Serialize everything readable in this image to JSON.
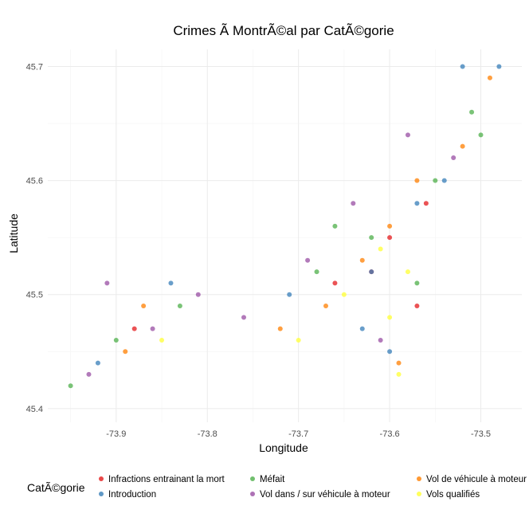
{
  "chart_data": {
    "type": "scatter",
    "title": "Crimes Ã  MontrÃ©al par CatÃ©gorie",
    "xlabel": "Longitude",
    "ylabel": "Latitude",
    "xlim": [
      -73.975,
      -73.455
    ],
    "ylim": [
      45.388,
      45.715
    ],
    "x_ticks": [
      -73.9,
      -73.8,
      -73.7,
      -73.6,
      -73.5
    ],
    "x_tick_labels": [
      "-73.9",
      "-73.8",
      "-73.7",
      "-73.6",
      "-73.5"
    ],
    "y_ticks": [
      45.4,
      45.5,
      45.6,
      45.7
    ],
    "y_tick_labels": [
      "45.4",
      "45.5",
      "45.6",
      "45.7"
    ],
    "grid": true,
    "legend_position": "bottom",
    "legend_title": "CatÃ©gorie",
    "series": [
      {
        "name": "Infractions entrainant la mort",
        "color": "#e41a1c",
        "points": [
          [
            -73.62,
            45.52
          ],
          [
            -73.57,
            45.49
          ],
          [
            -73.6,
            45.55
          ],
          [
            -73.56,
            45.58
          ],
          [
            -73.66,
            45.51
          ],
          [
            -73.88,
            45.47
          ]
        ]
      },
      {
        "name": "Introduction",
        "color": "#377eb8",
        "points": [
          [
            -73.52,
            45.7
          ],
          [
            -73.48,
            45.7
          ],
          [
            -73.84,
            45.51
          ],
          [
            -73.71,
            45.5
          ],
          [
            -73.62,
            45.52
          ],
          [
            -73.57,
            45.58
          ],
          [
            -73.54,
            45.6
          ],
          [
            -73.92,
            45.44
          ],
          [
            -73.63,
            45.47
          ],
          [
            -73.6,
            45.45
          ]
        ]
      },
      {
        "name": "Méfait",
        "color": "#4daf4a",
        "points": [
          [
            -73.5,
            45.64
          ],
          [
            -73.51,
            45.66
          ],
          [
            -73.55,
            45.6
          ],
          [
            -73.62,
            45.55
          ],
          [
            -73.66,
            45.56
          ],
          [
            -73.68,
            45.52
          ],
          [
            -73.83,
            45.49
          ],
          [
            -73.9,
            45.46
          ],
          [
            -73.95,
            45.42
          ],
          [
            -73.57,
            45.51
          ]
        ]
      },
      {
        "name": "Vol dans / sur véhicule à moteur",
        "color": "#984ea3",
        "points": [
          [
            -73.53,
            45.62
          ],
          [
            -73.58,
            45.64
          ],
          [
            -73.64,
            45.58
          ],
          [
            -73.69,
            45.53
          ],
          [
            -73.76,
            45.48
          ],
          [
            -73.81,
            45.5
          ],
          [
            -73.86,
            45.47
          ],
          [
            -73.91,
            45.51
          ],
          [
            -73.93,
            45.43
          ],
          [
            -73.61,
            45.46
          ]
        ]
      },
      {
        "name": "Vol de véhicule à moteur",
        "color": "#ff7f00",
        "points": [
          [
            -73.49,
            45.69
          ],
          [
            -73.52,
            45.63
          ],
          [
            -73.57,
            45.6
          ],
          [
            -73.6,
            45.56
          ],
          [
            -73.63,
            45.53
          ],
          [
            -73.67,
            45.49
          ],
          [
            -73.72,
            45.47
          ],
          [
            -73.87,
            45.49
          ],
          [
            -73.89,
            45.45
          ],
          [
            -73.59,
            45.44
          ]
        ]
      },
      {
        "name": "Vols qualifiés",
        "color": "#ffff33",
        "points": [
          [
            -73.58,
            45.52
          ],
          [
            -73.61,
            45.54
          ],
          [
            -73.65,
            45.5
          ],
          [
            -73.7,
            45.46
          ],
          [
            -73.85,
            45.46
          ],
          [
            -73.6,
            45.48
          ],
          [
            -73.59,
            45.43
          ]
        ]
      }
    ]
  }
}
